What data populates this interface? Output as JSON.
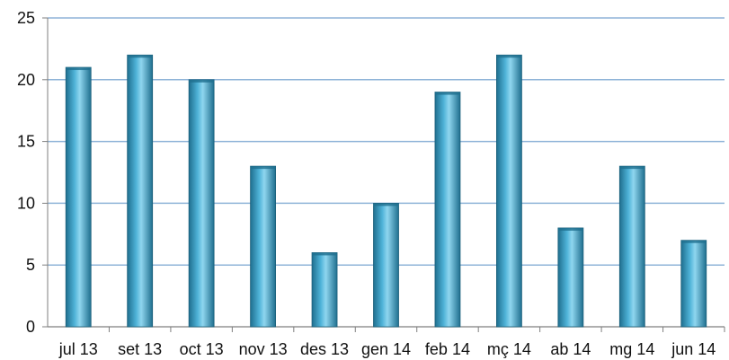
{
  "chart_data": {
    "type": "bar",
    "title": "",
    "xlabel": "",
    "ylabel": "",
    "categories": [
      "jul 13",
      "set 13",
      "oct 13",
      "nov 13",
      "des 13",
      "gen 14",
      "feb 14",
      "mç 14",
      "ab 14",
      "mg 14",
      "jun 14"
    ],
    "values": [
      21,
      22,
      20,
      13,
      6,
      10,
      19,
      22,
      8,
      13,
      7
    ],
    "ylim": [
      0,
      25
    ],
    "yticks": [
      0,
      5,
      10,
      15,
      20,
      25
    ],
    "grid": true,
    "legend": "none",
    "colors": {
      "bar_dark": "#1f6f8f",
      "bar_mid": "#4fb3d8",
      "bar_light": "#8fd6ef",
      "grid": "#8fb4d8",
      "axis": "#7f7f7f"
    }
  }
}
